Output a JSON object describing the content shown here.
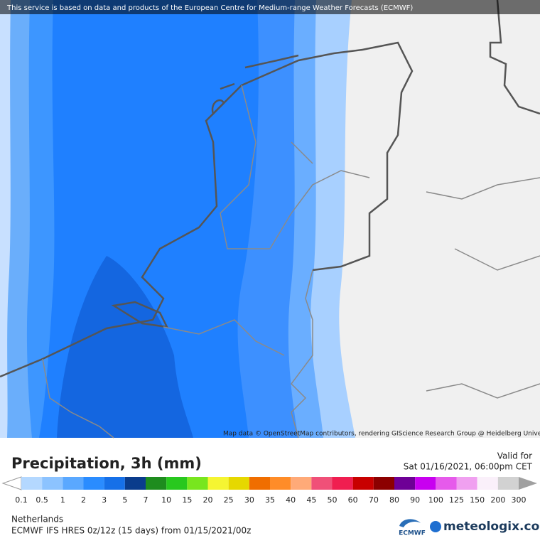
{
  "header": {
    "notice": "This service is based on data and products of the European Centre for Medium-range Weather Forecasts (ECMWF)"
  },
  "map": {
    "attribution": "Map data © OpenStreetMap contributors, rendering GIScience Research Group @ Heidelberg University"
  },
  "legend": {
    "title": "Precipitation, 3h (mm)",
    "labels": [
      0.1,
      0.5,
      1,
      2,
      3,
      5,
      7,
      10,
      15,
      20,
      25,
      30,
      35,
      40,
      45,
      50,
      60,
      70,
      80,
      90,
      100,
      125,
      150,
      200,
      300
    ],
    "colors": [
      "#b4d8ff",
      "#8cc3ff",
      "#5aa8ff",
      "#2a8cff",
      "#1670e8",
      "#0a3c8c",
      "#1e8c1e",
      "#28c81e",
      "#78e61e",
      "#f5f532",
      "#e6d800",
      "#f06e00",
      "#ff8c28",
      "#ffaa78",
      "#f05078",
      "#f01e50",
      "#c80000",
      "#8c0000",
      "#6e0096",
      "#c800f0",
      "#e65aeb",
      "#f0a0f0",
      "#faf0fa",
      "#d2d2d2"
    ]
  },
  "valid": {
    "label": "Valid for",
    "time": "Sat 01/16/2021, 06:00pm CET"
  },
  "info": {
    "region": "Netherlands",
    "model": "ECMWF IFS HRES 0z/12z (15 days)  from  01/15/2021/00z"
  },
  "logos": {
    "ecmwf": "ECMWF",
    "meteologix": "meteologix.com"
  }
}
